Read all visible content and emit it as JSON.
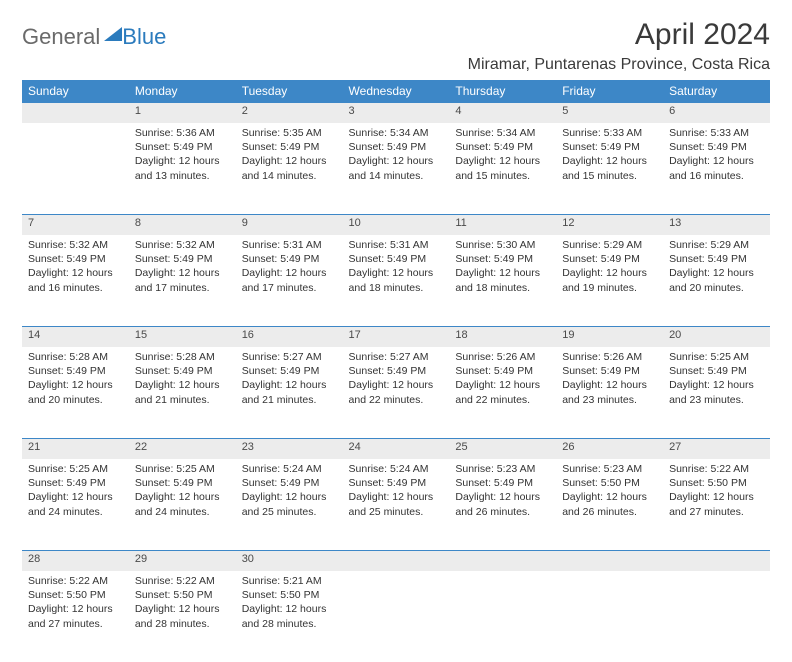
{
  "logo": {
    "part1": "General",
    "part2": "Blue"
  },
  "title": "April 2024",
  "location": "Miramar, Puntarenas Province, Costa Rica",
  "headers": [
    "Sunday",
    "Monday",
    "Tuesday",
    "Wednesday",
    "Thursday",
    "Friday",
    "Saturday"
  ],
  "colors": {
    "header_bg": "#3d87c7",
    "header_text": "#ffffff",
    "daynum_bg": "#ececec",
    "border": "#3d87c7",
    "logo_gray": "#6a6a6a",
    "logo_blue": "#2b7bbd"
  },
  "weeks": [
    {
      "nums": [
        "",
        "1",
        "2",
        "3",
        "4",
        "5",
        "6"
      ],
      "cells": [
        null,
        {
          "sr": "5:36 AM",
          "ss": "5:49 PM",
          "dl": "12 hours and 13 minutes."
        },
        {
          "sr": "5:35 AM",
          "ss": "5:49 PM",
          "dl": "12 hours and 14 minutes."
        },
        {
          "sr": "5:34 AM",
          "ss": "5:49 PM",
          "dl": "12 hours and 14 minutes."
        },
        {
          "sr": "5:34 AM",
          "ss": "5:49 PM",
          "dl": "12 hours and 15 minutes."
        },
        {
          "sr": "5:33 AM",
          "ss": "5:49 PM",
          "dl": "12 hours and 15 minutes."
        },
        {
          "sr": "5:33 AM",
          "ss": "5:49 PM",
          "dl": "12 hours and 16 minutes."
        }
      ]
    },
    {
      "nums": [
        "7",
        "8",
        "9",
        "10",
        "11",
        "12",
        "13"
      ],
      "cells": [
        {
          "sr": "5:32 AM",
          "ss": "5:49 PM",
          "dl": "12 hours and 16 minutes."
        },
        {
          "sr": "5:32 AM",
          "ss": "5:49 PM",
          "dl": "12 hours and 17 minutes."
        },
        {
          "sr": "5:31 AM",
          "ss": "5:49 PM",
          "dl": "12 hours and 17 minutes."
        },
        {
          "sr": "5:31 AM",
          "ss": "5:49 PM",
          "dl": "12 hours and 18 minutes."
        },
        {
          "sr": "5:30 AM",
          "ss": "5:49 PM",
          "dl": "12 hours and 18 minutes."
        },
        {
          "sr": "5:29 AM",
          "ss": "5:49 PM",
          "dl": "12 hours and 19 minutes."
        },
        {
          "sr": "5:29 AM",
          "ss": "5:49 PM",
          "dl": "12 hours and 20 minutes."
        }
      ]
    },
    {
      "nums": [
        "14",
        "15",
        "16",
        "17",
        "18",
        "19",
        "20"
      ],
      "cells": [
        {
          "sr": "5:28 AM",
          "ss": "5:49 PM",
          "dl": "12 hours and 20 minutes."
        },
        {
          "sr": "5:28 AM",
          "ss": "5:49 PM",
          "dl": "12 hours and 21 minutes."
        },
        {
          "sr": "5:27 AM",
          "ss": "5:49 PM",
          "dl": "12 hours and 21 minutes."
        },
        {
          "sr": "5:27 AM",
          "ss": "5:49 PM",
          "dl": "12 hours and 22 minutes."
        },
        {
          "sr": "5:26 AM",
          "ss": "5:49 PM",
          "dl": "12 hours and 22 minutes."
        },
        {
          "sr": "5:26 AM",
          "ss": "5:49 PM",
          "dl": "12 hours and 23 minutes."
        },
        {
          "sr": "5:25 AM",
          "ss": "5:49 PM",
          "dl": "12 hours and 23 minutes."
        }
      ]
    },
    {
      "nums": [
        "21",
        "22",
        "23",
        "24",
        "25",
        "26",
        "27"
      ],
      "cells": [
        {
          "sr": "5:25 AM",
          "ss": "5:49 PM",
          "dl": "12 hours and 24 minutes."
        },
        {
          "sr": "5:25 AM",
          "ss": "5:49 PM",
          "dl": "12 hours and 24 minutes."
        },
        {
          "sr": "5:24 AM",
          "ss": "5:49 PM",
          "dl": "12 hours and 25 minutes."
        },
        {
          "sr": "5:24 AM",
          "ss": "5:49 PM",
          "dl": "12 hours and 25 minutes."
        },
        {
          "sr": "5:23 AM",
          "ss": "5:49 PM",
          "dl": "12 hours and 26 minutes."
        },
        {
          "sr": "5:23 AM",
          "ss": "5:50 PM",
          "dl": "12 hours and 26 minutes."
        },
        {
          "sr": "5:22 AM",
          "ss": "5:50 PM",
          "dl": "12 hours and 27 minutes."
        }
      ]
    },
    {
      "nums": [
        "28",
        "29",
        "30",
        "",
        "",
        "",
        ""
      ],
      "cells": [
        {
          "sr": "5:22 AM",
          "ss": "5:50 PM",
          "dl": "12 hours and 27 minutes."
        },
        {
          "sr": "5:22 AM",
          "ss": "5:50 PM",
          "dl": "12 hours and 28 minutes."
        },
        {
          "sr": "5:21 AM",
          "ss": "5:50 PM",
          "dl": "12 hours and 28 minutes."
        },
        null,
        null,
        null,
        null
      ]
    }
  ],
  "labels": {
    "sunrise": "Sunrise: ",
    "sunset": "Sunset: ",
    "daylight": "Daylight: "
  }
}
